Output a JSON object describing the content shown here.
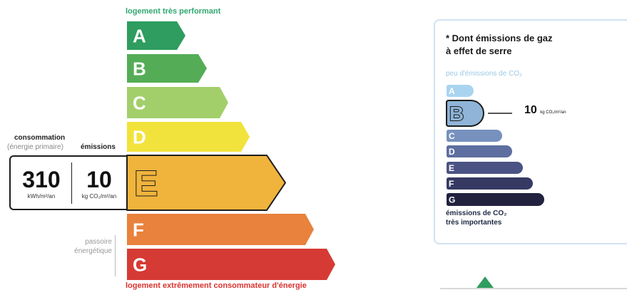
{
  "dpe": {
    "top_caption": "logement très performant",
    "bottom_caption": "logement extrêmement consommateur d'énergie",
    "consumption_title": "consommation",
    "consumption_subtitle": "(énergie primaire)",
    "emissions_title": "émissions",
    "consumption_value": "310",
    "consumption_unit": "kWh/m²/an",
    "emissions_value": "10",
    "emissions_unit": "kg CO₂/m²/an",
    "passoire_line1": "passoire",
    "passoire_line2": "énergétique",
    "current_class": "E",
    "classes": [
      {
        "letter": "A",
        "color": "#2e9d5f"
      },
      {
        "letter": "B",
        "color": "#54ad56"
      },
      {
        "letter": "C",
        "color": "#a3cf6a"
      },
      {
        "letter": "D",
        "color": "#f2e33c"
      },
      {
        "letter": "E",
        "color": "#f0b43c"
      },
      {
        "letter": "F",
        "color": "#e8823c"
      },
      {
        "letter": "G",
        "color": "#d63a34"
      }
    ]
  },
  "ges": {
    "title_line1": "* Dont émissions de gaz",
    "title_line2": "à effet de serre",
    "top_caption": "peu d'émissions de CO₂",
    "bottom_caption_line1": "émissions de CO₂",
    "bottom_caption_line2": "très importantes",
    "value": "10",
    "unit": "kg CO₂/m²/an",
    "current_class": "B",
    "classes": [
      {
        "letter": "A",
        "color": "#a9d4f0"
      },
      {
        "letter": "B",
        "color": "#8fb4d8"
      },
      {
        "letter": "C",
        "color": "#7791be"
      },
      {
        "letter": "D",
        "color": "#5e6ea0"
      },
      {
        "letter": "E",
        "color": "#4a5383"
      },
      {
        "letter": "F",
        "color": "#363a63"
      },
      {
        "letter": "G",
        "color": "#22223e"
      }
    ]
  }
}
